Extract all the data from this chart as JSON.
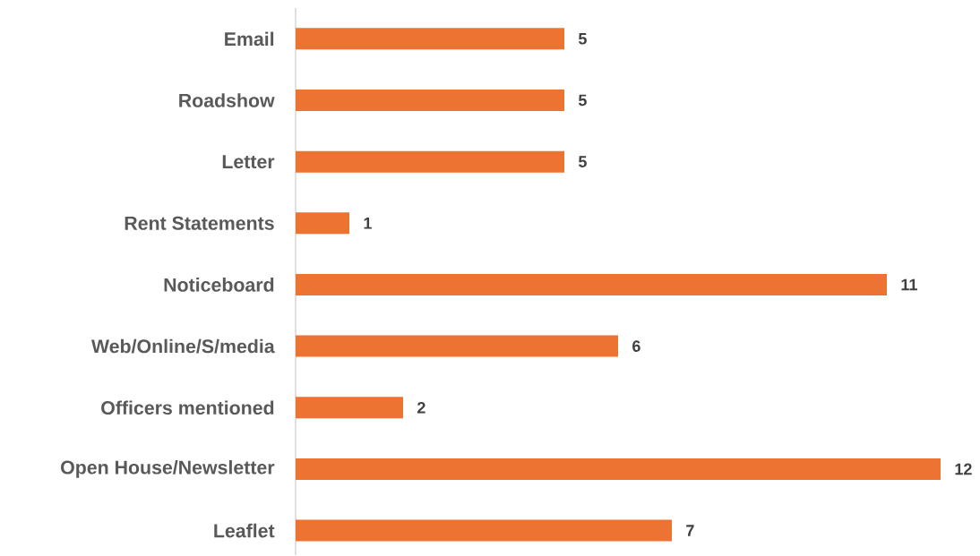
{
  "chart_data": {
    "type": "bar",
    "orientation": "horizontal",
    "categories": [
      "Email",
      "Roadshow",
      "Letter",
      "Rent Statements",
      "Noticeboard",
      "Web/Online/S/media",
      "Officers mentioned",
      "Open House/Newsletter",
      "Leaflet"
    ],
    "values": [
      5,
      5,
      5,
      1,
      11,
      6,
      2,
      12,
      7
    ],
    "color": "#ed7333",
    "data_labels": true
  }
}
